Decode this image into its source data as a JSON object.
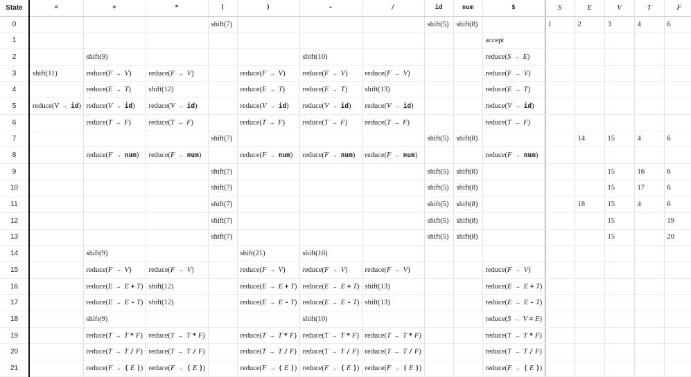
{
  "table": {
    "state_label": "State",
    "terminals": [
      "=",
      "+",
      "*",
      "(",
      ")",
      "-",
      "/",
      "id",
      "num",
      "$"
    ],
    "nonterminals": [
      "S",
      "E",
      "V",
      "T",
      "F"
    ],
    "rows": [
      {
        "state": "0",
        "action": [
          "",
          "",
          "",
          "shift(7)",
          "",
          "",
          "",
          "shift(5)",
          "shift(8)",
          ""
        ],
        "goto": [
          "1",
          "2",
          "3",
          "4",
          "6"
        ]
      },
      {
        "state": "1",
        "action": [
          "",
          "",
          "",
          "",
          "",
          "",
          "",
          "",
          "",
          "accept"
        ],
        "goto": [
          "",
          "",
          "",
          "",
          ""
        ]
      },
      {
        "state": "2",
        "action": [
          "",
          "shift(9)",
          "",
          "",
          "",
          "shift(10)",
          "",
          "",
          "",
          "reduce(S → E)"
        ],
        "goto": [
          "",
          "",
          "",
          "",
          ""
        ]
      },
      {
        "state": "3",
        "action": [
          "shift(11)",
          "reduce(F → V)",
          "reduce(F → V)",
          "",
          "reduce(F → V)",
          "reduce(F → V)",
          "reduce(F → V)",
          "",
          "",
          "reduce(F → V)"
        ],
        "goto": [
          "",
          "",
          "",
          "",
          ""
        ]
      },
      {
        "state": "4",
        "action": [
          "",
          "reduce(E → T)",
          "shift(12)",
          "",
          "reduce(E → T)",
          "reduce(E → T)",
          "shift(13)",
          "",
          "",
          "reduce(E → T)"
        ],
        "goto": [
          "",
          "",
          "",
          "",
          ""
        ]
      },
      {
        "state": "5",
        "action": [
          "reduce(V → id)",
          "reduce(V → id)",
          "reduce(V → id)",
          "",
          "reduce(V → id)",
          "reduce(V → id)",
          "reduce(V → id)",
          "",
          "",
          "reduce(V → id)"
        ],
        "goto": [
          "",
          "",
          "",
          "",
          ""
        ]
      },
      {
        "state": "6",
        "action": [
          "",
          "reduce(T → F)",
          "reduce(T → F)",
          "",
          "reduce(T → F)",
          "reduce(T → F)",
          "reduce(T → F)",
          "",
          "",
          "reduce(T → F)"
        ],
        "goto": [
          "",
          "",
          "",
          "",
          ""
        ]
      },
      {
        "state": "7",
        "action": [
          "",
          "",
          "",
          "shift(7)",
          "",
          "",
          "",
          "shift(5)",
          "shift(8)",
          ""
        ],
        "goto": [
          "",
          "14",
          "15",
          "4",
          "6"
        ]
      },
      {
        "state": "8",
        "action": [
          "",
          "reduce(F → num)",
          "reduce(F → num)",
          "",
          "reduce(F → num)",
          "reduce(F → num)",
          "reduce(F → num)",
          "",
          "",
          "reduce(F → num)"
        ],
        "goto": [
          "",
          "",
          "",
          "",
          ""
        ]
      },
      {
        "state": "9",
        "action": [
          "",
          "",
          "",
          "shift(7)",
          "",
          "",
          "",
          "shift(5)",
          "shift(8)",
          ""
        ],
        "goto": [
          "",
          "",
          "15",
          "16",
          "6"
        ]
      },
      {
        "state": "10",
        "action": [
          "",
          "",
          "",
          "shift(7)",
          "",
          "",
          "",
          "shift(5)",
          "shift(8)",
          ""
        ],
        "goto": [
          "",
          "",
          "15",
          "17",
          "6"
        ]
      },
      {
        "state": "11",
        "action": [
          "",
          "",
          "",
          "shift(7)",
          "",
          "",
          "",
          "shift(5)",
          "shift(8)",
          ""
        ],
        "goto": [
          "",
          "18",
          "15",
          "4",
          "6"
        ]
      },
      {
        "state": "12",
        "action": [
          "",
          "",
          "",
          "shift(7)",
          "",
          "",
          "",
          "shift(5)",
          "shift(8)",
          ""
        ],
        "goto": [
          "",
          "",
          "15",
          "",
          "19"
        ]
      },
      {
        "state": "13",
        "action": [
          "",
          "",
          "",
          "shift(7)",
          "",
          "",
          "",
          "shift(5)",
          "shift(8)",
          ""
        ],
        "goto": [
          "",
          "",
          "15",
          "",
          "20"
        ]
      },
      {
        "state": "14",
        "action": [
          "",
          "shift(9)",
          "",
          "",
          "shift(21)",
          "shift(10)",
          "",
          "",
          "",
          ""
        ],
        "goto": [
          "",
          "",
          "",
          "",
          ""
        ]
      },
      {
        "state": "15",
        "action": [
          "",
          "reduce(F → V)",
          "reduce(F → V)",
          "",
          "reduce(F → V)",
          "reduce(F → V)",
          "reduce(F → V)",
          "",
          "",
          "reduce(F → V)"
        ],
        "goto": [
          "",
          "",
          "",
          "",
          ""
        ]
      },
      {
        "state": "16",
        "action": [
          "",
          "reduce(E → E + T)",
          "shift(12)",
          "",
          "reduce(E → E + T)",
          "reduce(E → E + T)",
          "shift(13)",
          "",
          "",
          "reduce(E → E + T)"
        ],
        "goto": [
          "",
          "",
          "",
          "",
          ""
        ]
      },
      {
        "state": "17",
        "action": [
          "",
          "reduce(E → E - T)",
          "shift(12)",
          "",
          "reduce(E → E - T)",
          "reduce(E → E - T)",
          "shift(13)",
          "",
          "",
          "reduce(E → E - T)"
        ],
        "goto": [
          "",
          "",
          "",
          "",
          ""
        ]
      },
      {
        "state": "18",
        "action": [
          "",
          "shift(9)",
          "",
          "",
          "",
          "shift(10)",
          "",
          "",
          "",
          "reduce(S → V = E)"
        ],
        "goto": [
          "",
          "",
          "",
          "",
          ""
        ]
      },
      {
        "state": "19",
        "action": [
          "",
          "reduce(T → T * F)",
          "reduce(T → T * F)",
          "",
          "reduce(T → T * F)",
          "reduce(T → T * F)",
          "reduce(T → T * F)",
          "",
          "",
          "reduce(T → T * F)"
        ],
        "goto": [
          "",
          "",
          "",
          "",
          ""
        ]
      },
      {
        "state": "20",
        "action": [
          "",
          "reduce(T → T / F)",
          "reduce(T → T / F)",
          "",
          "reduce(T → T / F)",
          "reduce(T → T / F)",
          "reduce(T → T / F)",
          "",
          "",
          "reduce(T → T / F)"
        ],
        "goto": [
          "",
          "",
          "",
          "",
          ""
        ]
      },
      {
        "state": "21",
        "action": [
          "",
          "reduce(F → ( E ))",
          "reduce(F → ( E ))",
          "",
          "reduce(F → ( E ))",
          "reduce(F → ( E ))",
          "reduce(F → ( E ))",
          "",
          "",
          "reduce(F → ( E ))"
        ],
        "goto": [
          "",
          "",
          "",
          "",
          ""
        ]
      }
    ]
  }
}
